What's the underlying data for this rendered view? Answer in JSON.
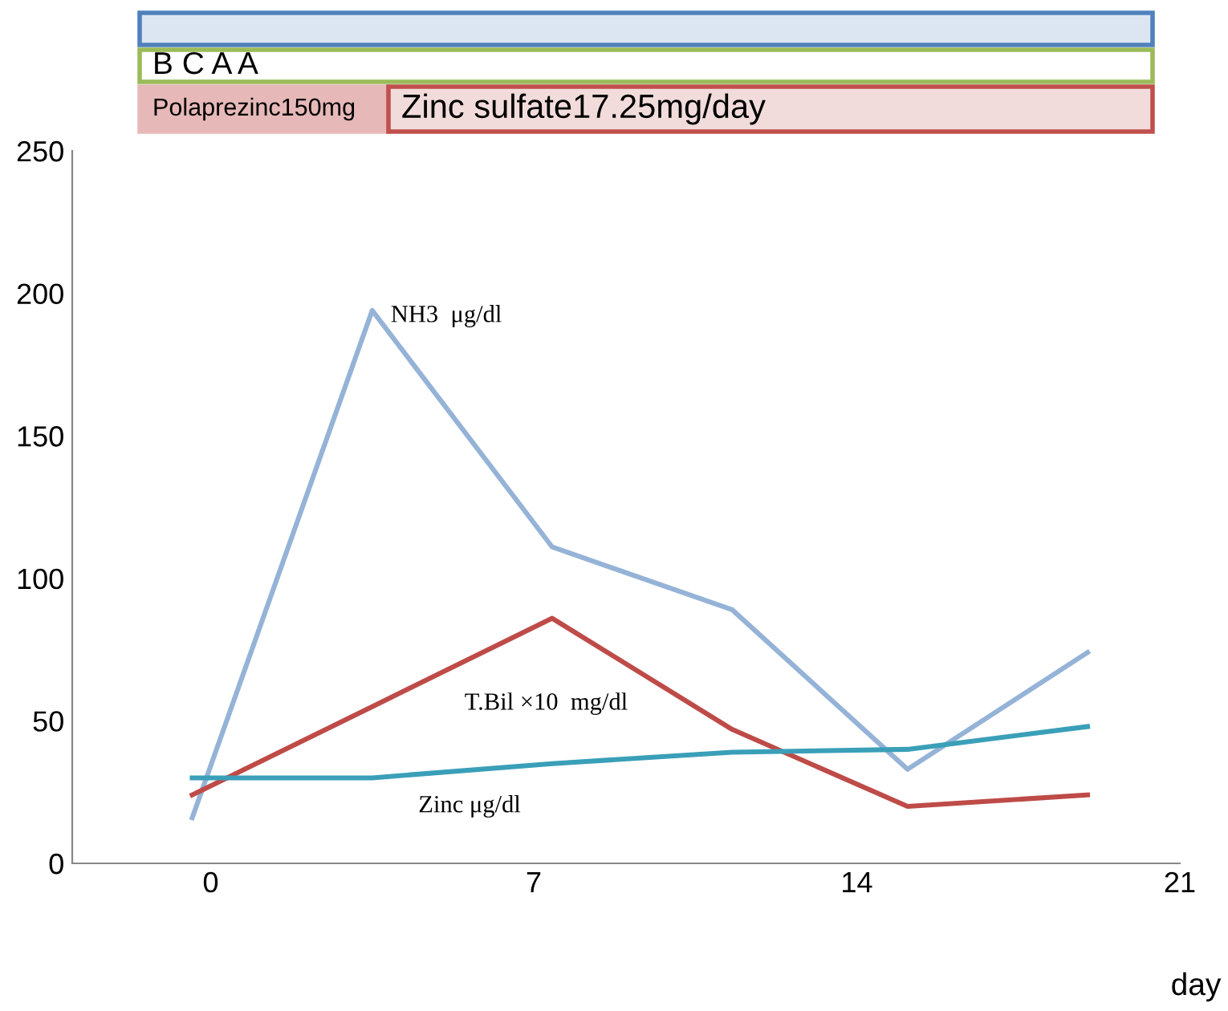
{
  "chart_data": {
    "type": "line",
    "x": [
      -0.4,
      3.5,
      7.4,
      11.3,
      15.1,
      19.0
    ],
    "series": [
      {
        "name": "NH3  μg/dl",
        "color": "#95b3d7",
        "values": [
          16,
          194,
          111,
          89,
          33,
          74
        ]
      },
      {
        "name": "T.Bil ×10  mg/dl",
        "color": "#be4b48",
        "values": [
          24,
          55,
          86,
          47,
          20,
          24
        ]
      },
      {
        "name": "Zinc μg/dl",
        "color": "#3a9fb8",
        "values": [
          30,
          30,
          35,
          39,
          40,
          48
        ]
      }
    ],
    "xlim": [
      -3,
      21
    ],
    "xticks": [
      0,
      7,
      14,
      21
    ],
    "ylim": [
      0,
      250
    ],
    "yticks": [
      0,
      50,
      100,
      150,
      200,
      250
    ],
    "xlabel": "day",
    "grid": false,
    "legend": false,
    "marker": "none",
    "line_style": "solid",
    "annotations": [
      "B C A A",
      "Polaprezinc150mg",
      "Zinc sulfate17.25mg/day"
    ]
  }
}
